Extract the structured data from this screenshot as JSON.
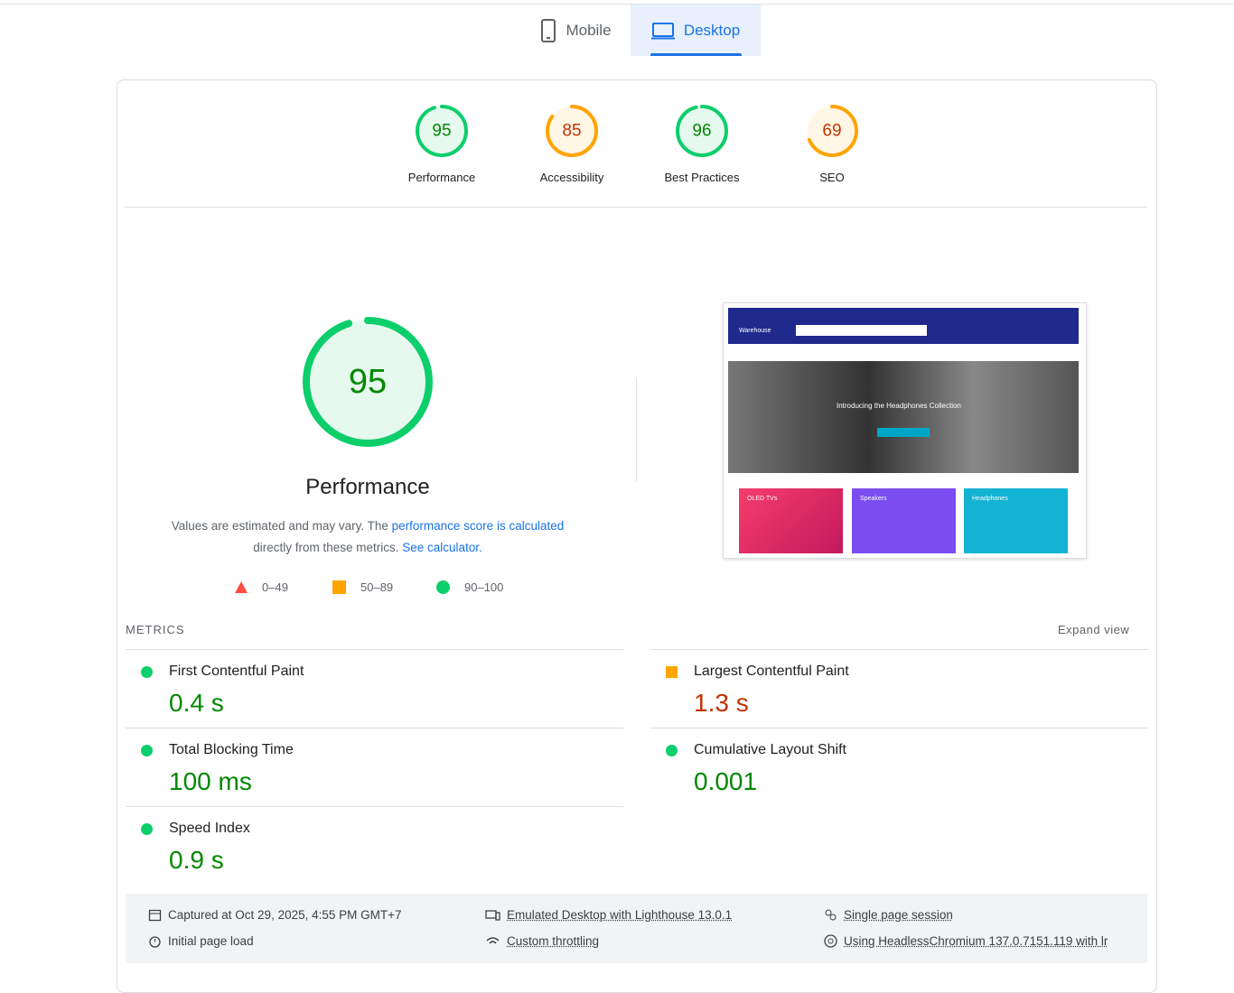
{
  "tabs": [
    "Mobile",
    "Desktop"
  ],
  "scores": [
    {
      "value": 95,
      "label": "Performance",
      "rating": "pass"
    },
    {
      "value": 85,
      "label": "Accessibility",
      "rating": "average"
    },
    {
      "value": 96,
      "label": "Best Practices",
      "rating": "pass"
    },
    {
      "value": 69,
      "label": "SEO",
      "rating": "average"
    }
  ],
  "performance": {
    "score": 95,
    "rating": "pass",
    "title": "Performance",
    "description": [
      "Values are estimated and may vary. The ",
      "performance score is calculated",
      "directly from these metrics. ",
      "See calculator."
    ],
    "legend": [
      "0–49",
      "50–89",
      "90–100"
    ]
  },
  "screenshot": {
    "brand": "Warehouse",
    "hero": "Introducing the Headphones Collection",
    "cards": [
      "OLED TVs",
      "Speakers",
      "Headphones"
    ]
  },
  "metrics": {
    "title": "METRICS",
    "expand": "Expand view",
    "items": [
      {
        "name": "First Contentful Paint",
        "value": "0.4 s",
        "rating": "pass"
      },
      {
        "name": "Largest Contentful Paint",
        "value": "1.3 s",
        "rating": "average"
      },
      {
        "name": "Total Blocking Time",
        "value": "100 ms",
        "rating": "pass"
      },
      {
        "name": "Cumulative Layout Shift",
        "value": "0.001",
        "rating": "pass"
      },
      {
        "name": "Speed Index",
        "value": "0.9 s",
        "rating": "pass"
      }
    ]
  },
  "footer": [
    "Captured at Oct 29, 2025, 4:55 PM GMT+7",
    "Initial page load",
    "Emulated Desktop with Lighthouse 13.0.1",
    "Custom throttling",
    "Single page session",
    "Using HeadlessChromium 137.0.7151.119 with lr"
  ]
}
